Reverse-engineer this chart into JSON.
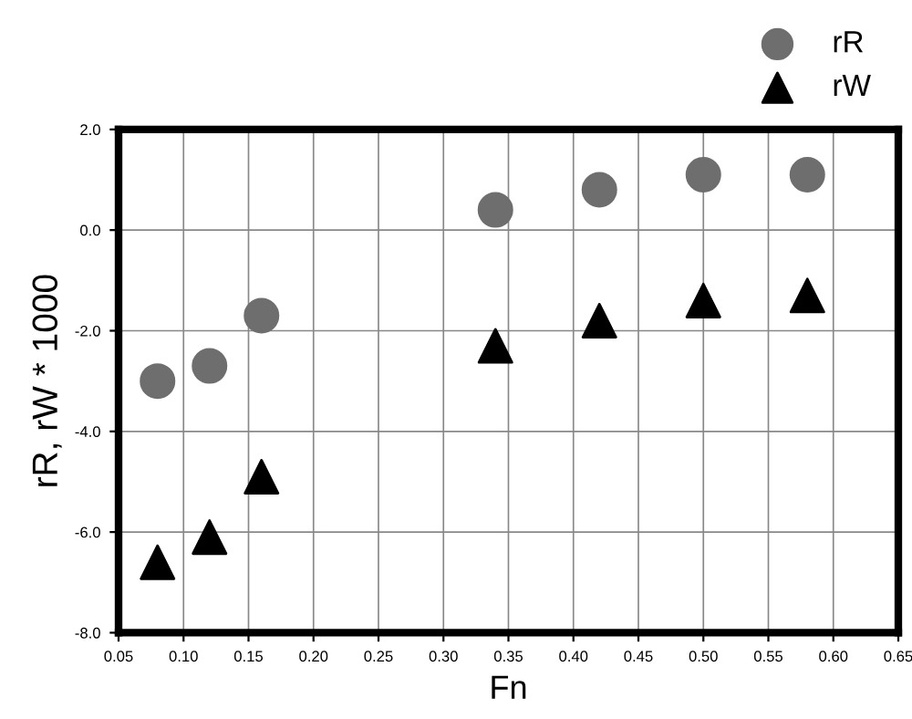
{
  "chart_data": {
    "type": "scatter",
    "xlabel": "Fn",
    "ylabel": "rR, rW * 1000",
    "series": [
      {
        "name": "rR",
        "color": "#6e6e6e",
        "marker": "circle",
        "x": [
          0.08,
          0.12,
          0.16,
          0.34,
          0.42,
          0.5,
          0.58
        ],
        "values": [
          -3.0,
          -2.7,
          -1.7,
          0.4,
          0.8,
          1.1,
          1.1
        ]
      },
      {
        "name": "rW",
        "color": "#000000",
        "marker": "triangle",
        "x": [
          0.08,
          0.12,
          0.16,
          0.34,
          0.42,
          0.5,
          0.58
        ],
        "values": [
          -6.6,
          -6.1,
          -4.9,
          -2.3,
          -1.8,
          -1.4,
          -1.3
        ]
      }
    ],
    "xlim": [
      0.05,
      0.65
    ],
    "ylim": [
      -8,
      2
    ],
    "xticks": [
      {
        "value": 0.05,
        "label": "0.05"
      },
      {
        "value": 0.1,
        "label": "0.10"
      },
      {
        "value": 0.15,
        "label": "0.15"
      },
      {
        "value": 0.2,
        "label": "0.20"
      },
      {
        "value": 0.25,
        "label": "0.25"
      },
      {
        "value": 0.3,
        "label": "0.30"
      },
      {
        "value": 0.35,
        "label": "0.35"
      },
      {
        "value": 0.4,
        "label": "0.40"
      },
      {
        "value": 0.45,
        "label": "0.45"
      },
      {
        "value": 0.5,
        "label": "0.50"
      },
      {
        "value": 0.55,
        "label": "0.55"
      },
      {
        "value": 0.6,
        "label": "0.60"
      },
      {
        "value": 0.65,
        "label": "0.65"
      }
    ],
    "yticks": [
      {
        "value": -8,
        "label": "-8.0"
      },
      {
        "value": -6,
        "label": "-6.0"
      },
      {
        "value": -4,
        "label": "-4.0"
      },
      {
        "value": -2,
        "label": "-2.0"
      },
      {
        "value": 0,
        "label": "0.0"
      },
      {
        "value": 2,
        "label": "2.0"
      }
    ],
    "grid": true,
    "legend": "top right"
  }
}
